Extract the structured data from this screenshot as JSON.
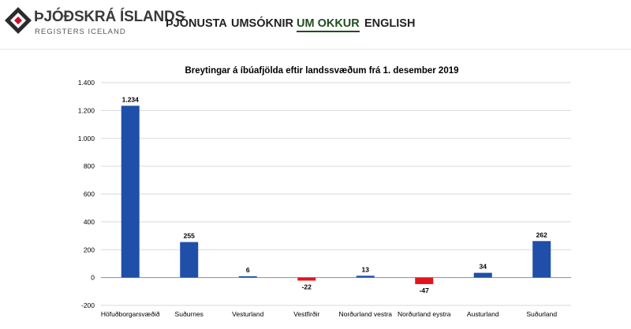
{
  "header": {
    "logo_title": "ÞJÓÐSKRÁ ÍSLANDS",
    "logo_subtitle": "REGISTERS ICELAND",
    "nav": [
      {
        "label": "ÞJÓNUSTA",
        "active": false
      },
      {
        "label": "UMSÓKNIR",
        "active": false
      },
      {
        "label": "UM OKKUR",
        "active": true
      },
      {
        "label": "ENGLISH",
        "active": false
      }
    ]
  },
  "colors": {
    "positive_bar": "#1f4fa8",
    "negative_bar": "#e3141b",
    "grid": "#d9d9d9",
    "nav_active": "#1f4d1f"
  },
  "chart_data": {
    "type": "bar",
    "title": "Breytingar á íbúafjölda eftir landssvæðum frá 1. desember 2019",
    "xlabel": "",
    "ylabel": "",
    "ylim": [
      -200,
      1400
    ],
    "yticks": [
      -200,
      0,
      200,
      400,
      600,
      800,
      1000,
      1200,
      1400
    ],
    "ytick_labels": [
      "-200",
      "0",
      "200",
      "400",
      "600",
      "800",
      "1.000",
      "1.200",
      "1.400"
    ],
    "categories": [
      "Höfuðborgarsvæðið",
      "Suðurnes",
      "Vesturland",
      "Vestfirðir",
      "Norðurland vestra",
      "Norðurland eystra",
      "Austurland",
      "Suðurland"
    ],
    "values": [
      1234,
      255,
      6,
      -22,
      13,
      -47,
      34,
      262
    ],
    "value_labels": [
      "1.234",
      "255",
      "6",
      "-22",
      "13",
      "-47",
      "34",
      "262"
    ],
    "grid": true,
    "legend": "none"
  }
}
